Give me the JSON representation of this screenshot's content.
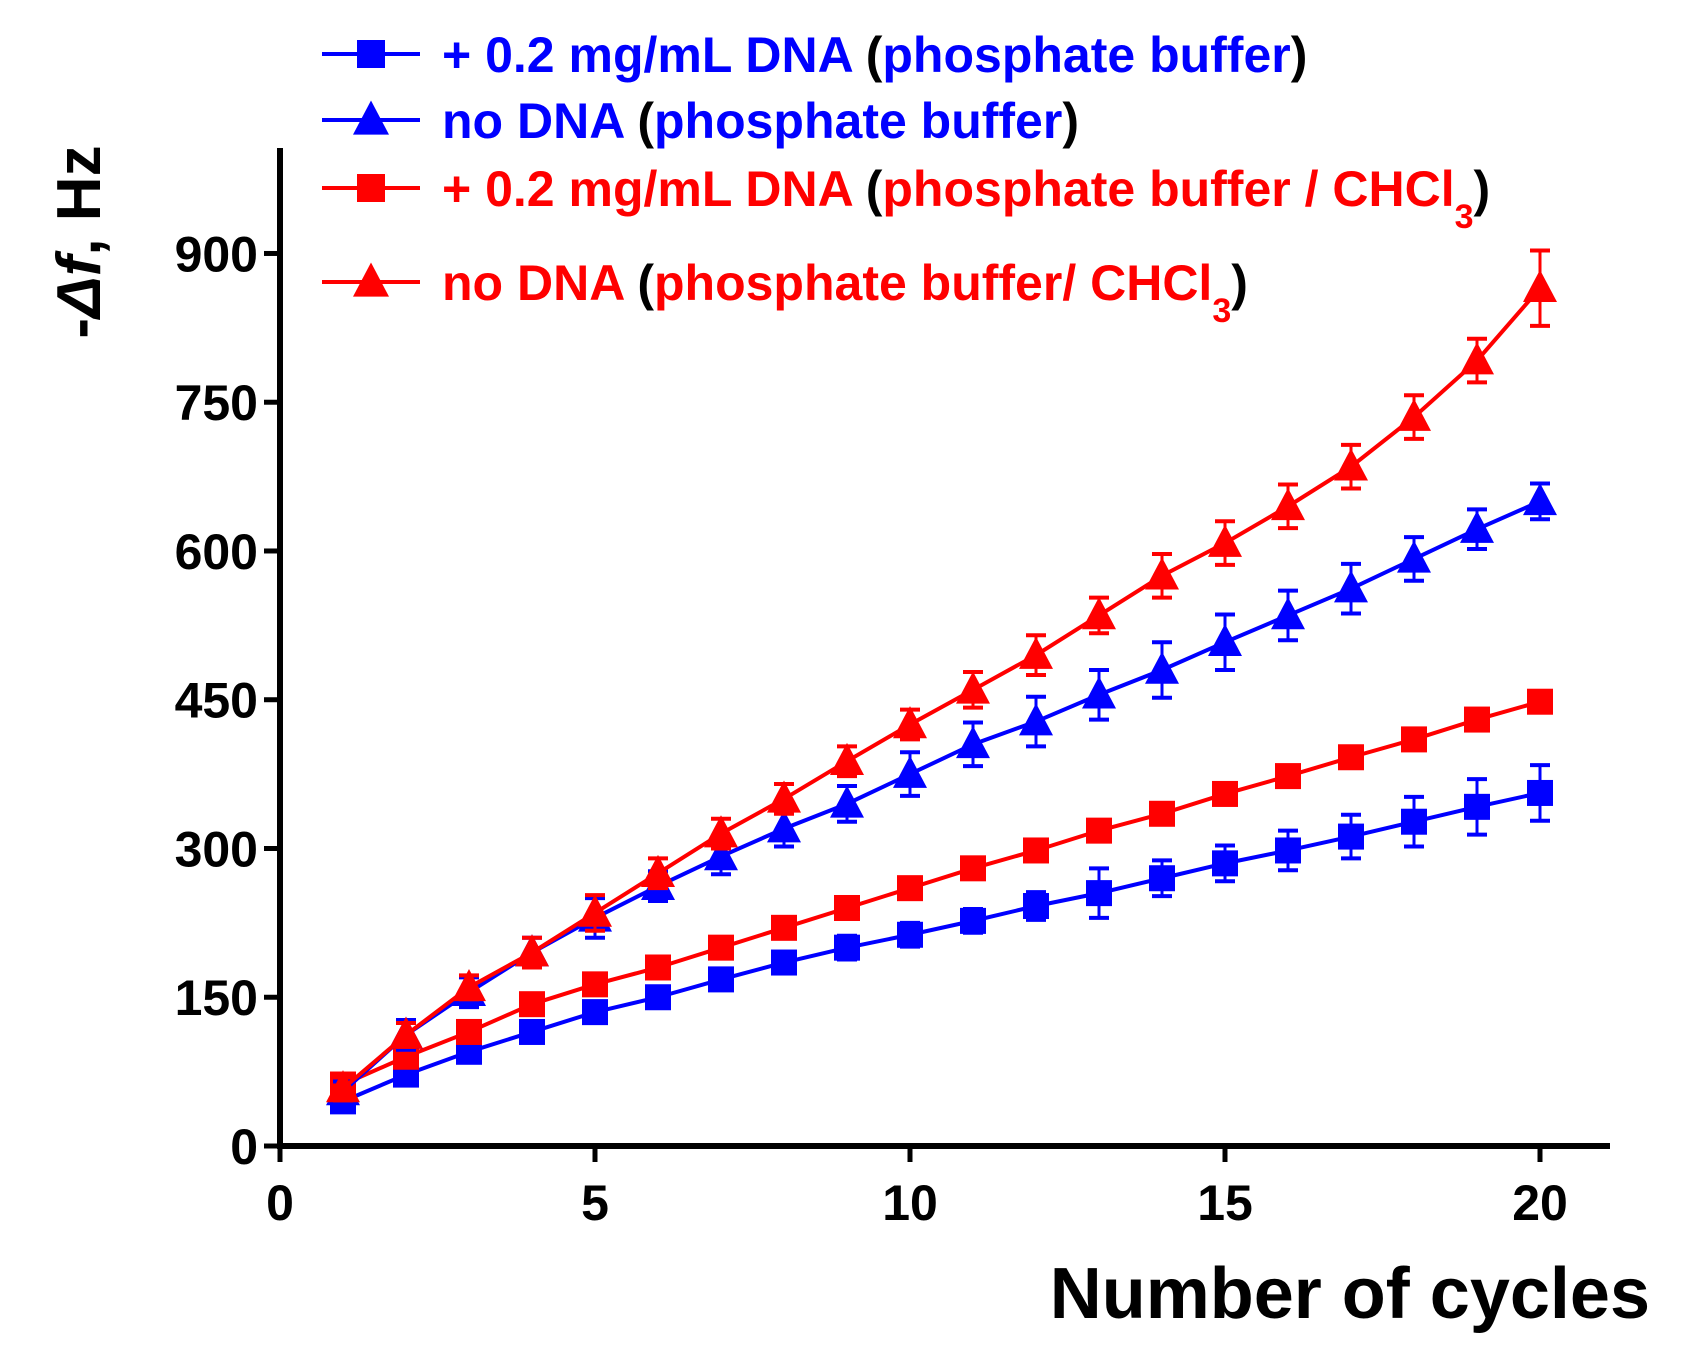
{
  "chart_data": {
    "type": "line",
    "title": "",
    "xlabel": "Number of cycles",
    "ylabel": {
      "prefix": "-",
      "delta": "Δ",
      "var": "f",
      "suffix": ", Hz"
    },
    "xlim": [
      0,
      21
    ],
    "ylim": [
      0,
      1000
    ],
    "xticks": [
      0,
      5,
      10,
      15,
      20
    ],
    "yticks": [
      0,
      150,
      300,
      450,
      600,
      750,
      900
    ],
    "legend_position": "top",
    "colors": {
      "blue": "#0000ff",
      "red": "#ff0000",
      "black": "#000000"
    },
    "x": [
      1,
      2,
      3,
      4,
      5,
      6,
      7,
      8,
      9,
      10,
      11,
      12,
      13,
      14,
      15,
      16,
      17,
      18,
      19,
      20
    ],
    "series": [
      {
        "name": "+ 0.2 mg/mL DNA (phosphate buffer)",
        "legend": {
          "label": "+ 0.2 mg/mL DNA",
          "condition": "phosphate buffer",
          "sub": ""
        },
        "color": "#0000ff",
        "marker": "square",
        "values": [
          45,
          72,
          95,
          115,
          135,
          150,
          168,
          185,
          200,
          213,
          227,
          242,
          255,
          270,
          285,
          298,
          312,
          327,
          342,
          356
        ],
        "errors": [
          8,
          8,
          8,
          8,
          8,
          10,
          10,
          10,
          12,
          12,
          12,
          14,
          25,
          18,
          18,
          20,
          22,
          25,
          28,
          28
        ]
      },
      {
        "name": "no DNA (phosphate buffer)",
        "legend": {
          "label": "no DNA",
          "condition": "phosphate buffer",
          "sub": ""
        },
        "color": "#0000ff",
        "marker": "triangle",
        "values": [
          55,
          112,
          155,
          195,
          230,
          262,
          292,
          320,
          345,
          375,
          405,
          428,
          455,
          480,
          508,
          535,
          562,
          592,
          622,
          650
        ],
        "errors": [
          10,
          15,
          15,
          15,
          20,
          15,
          18,
          18,
          18,
          22,
          22,
          25,
          25,
          28,
          28,
          25,
          25,
          22,
          20,
          18
        ]
      },
      {
        "name": "+ 0.2 mg/mL DNA (phosphate buffer / CHCl3)",
        "legend": {
          "label": "+ 0.2 mg/mL DNA",
          "condition": "phosphate buffer / CHCl",
          "sub": "3"
        },
        "color": "#ff0000",
        "marker": "square",
        "values": [
          62,
          90,
          115,
          143,
          163,
          180,
          200,
          220,
          240,
          260,
          280,
          298,
          318,
          335,
          355,
          373,
          392,
          410,
          430,
          448
        ],
        "errors": [
          6,
          6,
          6,
          6,
          6,
          6,
          6,
          6,
          6,
          6,
          6,
          6,
          6,
          6,
          6,
          6,
          6,
          6,
          6,
          6
        ]
      },
      {
        "name": "no DNA (phosphate buffer/ CHCl3)",
        "legend": {
          "label": "no DNA",
          "condition": "phosphate buffer/ CHCl",
          "sub": "3"
        },
        "color": "#ff0000",
        "marker": "triangle",
        "values": [
          58,
          112,
          160,
          195,
          235,
          275,
          315,
          350,
          388,
          425,
          460,
          495,
          535,
          575,
          608,
          645,
          685,
          735,
          792,
          865
        ],
        "errors": [
          12,
          12,
          12,
          15,
          18,
          15,
          15,
          15,
          15,
          15,
          18,
          20,
          18,
          22,
          22,
          22,
          22,
          22,
          22,
          38
        ]
      }
    ]
  }
}
